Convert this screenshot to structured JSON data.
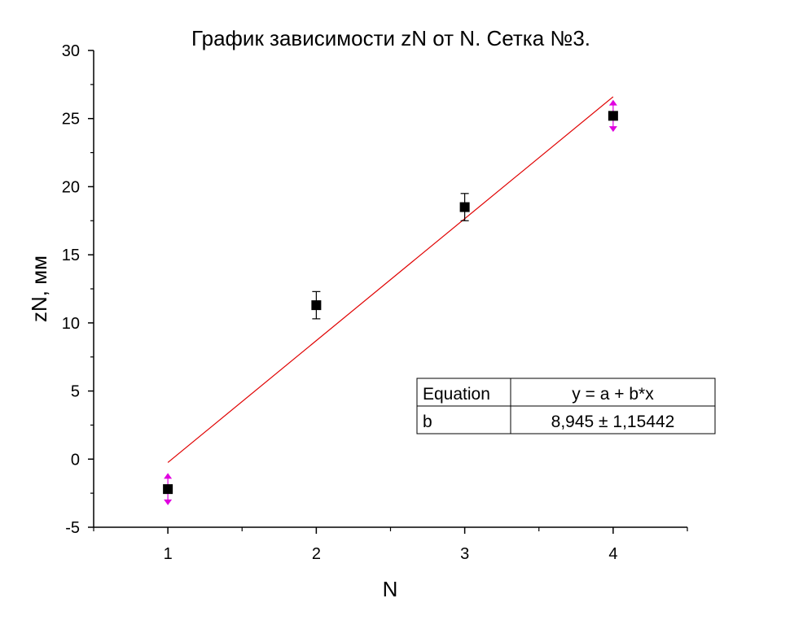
{
  "chart_data": {
    "type": "scatter",
    "title": "График зависимости zN от N. Сетка №3.",
    "xlabel": "N",
    "ylabel": "zN, мм",
    "xlim": [
      0.5,
      4.5
    ],
    "ylim": [
      -5,
      30
    ],
    "x_ticks": [
      1,
      2,
      3,
      4
    ],
    "y_ticks": [
      -5,
      0,
      5,
      10,
      15,
      20,
      25,
      30
    ],
    "x_tick_labels": [
      "1",
      "2",
      "3",
      "4"
    ],
    "y_tick_labels": [
      "-5",
      "0",
      "5",
      "10",
      "15",
      "20",
      "25",
      "30"
    ],
    "grid": false,
    "points": [
      {
        "x": 1,
        "y": -2.2,
        "err": 1.0,
        "highlight": true
      },
      {
        "x": 2,
        "y": 11.3,
        "err": 1.0,
        "highlight": false
      },
      {
        "x": 3,
        "y": 18.5,
        "err": 1.0,
        "highlight": false
      },
      {
        "x": 4,
        "y": 25.2,
        "err": 1.0,
        "highlight": true
      }
    ],
    "fit_line": {
      "x": [
        1,
        4
      ],
      "y": [
        -0.25,
        26.6
      ],
      "color": "#e00000"
    },
    "marker_color": "#000000",
    "highlight_color": "#e000e0",
    "fit_table": {
      "rows": [
        [
          "Equation",
          "y = a + b*x"
        ],
        [
          "b",
          "8,945 ± 1,15442"
        ]
      ]
    }
  }
}
